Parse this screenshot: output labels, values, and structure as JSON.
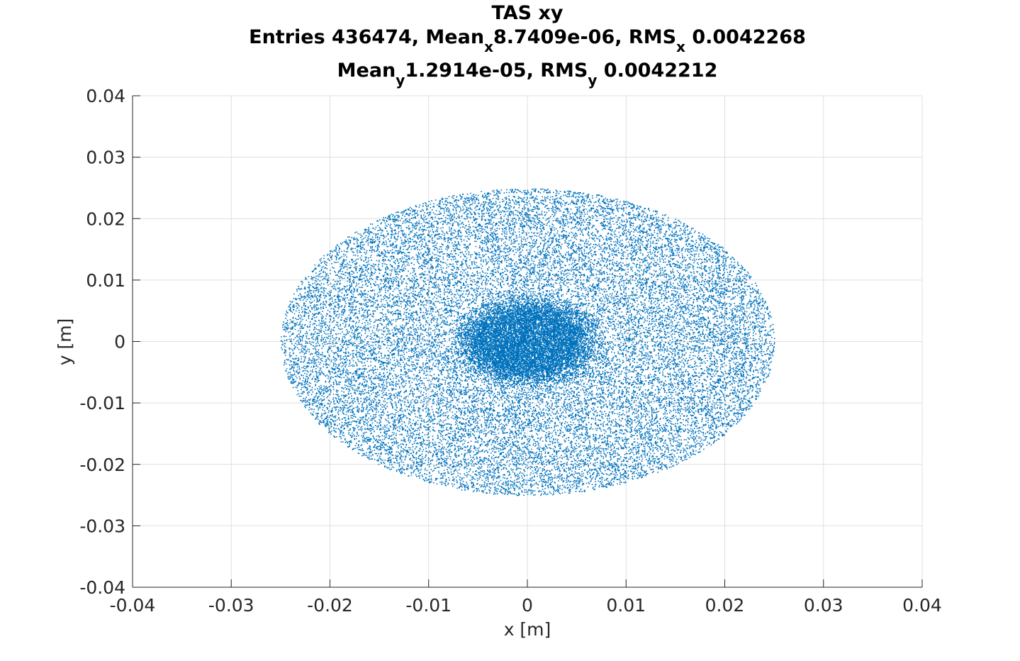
{
  "chart_data": {
    "type": "scatter",
    "title": "TAS xy",
    "stats_line1": {
      "entries_label": "Entries 436474, Mean",
      "mean_x_sub": "x",
      "mean_x_value": "8.7409e-06, RMS",
      "rms_x_sub": "x",
      "rms_x_value": " 0.0042268"
    },
    "stats_line2": {
      "mean_label": "Mean",
      "mean_y_sub": "y",
      "mean_y_value": "1.2914e-05, RMS",
      "rms_y_sub": "y",
      "rms_y_value": " 0.0042212"
    },
    "entries": 436474,
    "mean_x": 8.7409e-06,
    "rms_x": 0.0042268,
    "mean_y": 1.2914e-05,
    "rms_y": 0.0042212,
    "xlabel": "x [m]",
    "ylabel": "y [m]",
    "xlim": [
      -0.04,
      0.04
    ],
    "ylim": [
      -0.04,
      0.04
    ],
    "xticks": [
      -0.04,
      -0.03,
      -0.02,
      -0.01,
      0,
      0.01,
      0.02,
      0.03,
      0.04
    ],
    "yticks": [
      -0.04,
      -0.03,
      -0.02,
      -0.01,
      0,
      0.01,
      0.02,
      0.03,
      0.04
    ],
    "xtick_labels": [
      "-0.04",
      "-0.03",
      "-0.02",
      "-0.01",
      "0",
      "0.01",
      "0.02",
      "0.03",
      "0.04"
    ],
    "ytick_labels": [
      "-0.04",
      "-0.03",
      "-0.02",
      "-0.01",
      "0",
      "0.01",
      "0.02",
      "0.03",
      "0.04"
    ],
    "grid": true,
    "distribution": {
      "shape": "circular disk",
      "radius": 0.025,
      "center": [
        0,
        0
      ],
      "core_density_radius": 0.008
    },
    "marker_color": "#0072BD"
  }
}
